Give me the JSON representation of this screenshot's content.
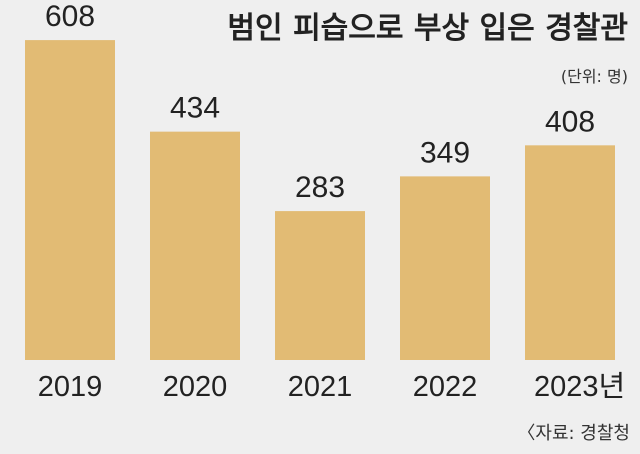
{
  "colors": {
    "background": "#efefef",
    "bar": "#e2bb74",
    "text": "#222222"
  },
  "chart_data": {
    "type": "bar",
    "title": "범인 피습으로 부상 입은 경찰관",
    "unit_note": "(단위: 명)",
    "source": "〈자료: 경찰청",
    "categories": [
      "2019",
      "2020",
      "2021",
      "2022",
      "2023년"
    ],
    "values": [
      608,
      434,
      283,
      349,
      408
    ],
    "ylim": [
      0,
      650
    ],
    "grid": false,
    "legend": "none"
  }
}
